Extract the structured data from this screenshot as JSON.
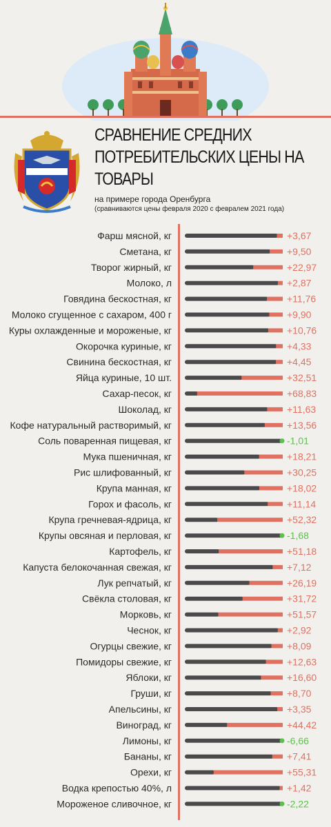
{
  "header": {
    "title_lines": [
      "СРАВНЕНИЕ СРЕДНИХ",
      "ПОТРЕБИТЕЛЬСКИХ ЦЕНЫ НА",
      "ТОВАРЫ"
    ],
    "subtitle": "на примере города Оренбурга",
    "note": "(сравниваются цены февраля 2020 с февралем 2021 года)"
  },
  "colors": {
    "background": "#f2f0ed",
    "bar_base": "#4a4a4a",
    "increase": "#e07060",
    "decrease": "#5cc04c",
    "axis_line": "#e07060",
    "header_sky": "#dcebf7"
  },
  "chart_data": {
    "type": "bar",
    "orientation": "horizontal",
    "unit": "percent change",
    "categories": [
      "Фарш мясной, кг",
      "Сметана, кг",
      "Творог жирный, кг",
      "Молоко, л",
      "Говядина бескостная, кг",
      "Молоко сгущенное с сахаром, 400 г",
      "Куры охлажденные и мороженые, кг",
      "Окорочка куриные, кг",
      "Свинина бескостная, кг",
      "Яйца куриные, 10 шт.",
      "Сахар-песок, кг",
      "Шоколад, кг",
      "Кофе натуральный растворимый, кг",
      "Соль поваренная пищевая, кг",
      "Мука пшеничная, кг",
      "Рис шлифованный, кг",
      "Крупа манная, кг",
      "Горох и фасоль, кг",
      "Крупа гречневая-ядрица, кг",
      "Крупы овсяная и перловая, кг",
      "Картофель, кг",
      "Капуста белокочанная свежая, кг",
      "Лук репчатый, кг",
      "Свёкла столовая, кг",
      "Морковь, кг",
      "Чеснок, кг",
      "Огурцы свежие, кг",
      "Помидоры свежие, кг",
      "Яблоки, кг",
      "Груши, кг",
      "Апельсины, кг",
      "Виноград, кг",
      "Лимоны, кг",
      "Бананы, кг",
      "Орехи, кг",
      "Водка крепостью 40%, л",
      "Мороженое сливочное, кг"
    ],
    "values": [
      3.67,
      9.5,
      22.97,
      2.87,
      11.76,
      9.9,
      10.76,
      4.33,
      4.45,
      32.51,
      68.83,
      11.63,
      13.56,
      -1.01,
      18.21,
      30.25,
      18.02,
      11.14,
      52.32,
      -1.68,
      51.18,
      7.12,
      26.19,
      31.72,
      51.57,
      2.92,
      8.09,
      12.63,
      16.6,
      8.7,
      3.35,
      44.42,
      -6.66,
      7.41,
      55.31,
      1.42,
      -2.22
    ],
    "value_labels": [
      "+3,67",
      "+9,50",
      "+22,97",
      "+2,87",
      "+11,76",
      "+9,90",
      "+10,76",
      "+4,33",
      "+4,45",
      "+32,51",
      "+68,83",
      "+11,63",
      "+13,56",
      "-1,01",
      "+18,21",
      "+30,25",
      "+18,02",
      "+11,14",
      "+52,32",
      "-1,68",
      "+51,18",
      "+7,12",
      "+26,19",
      "+31,72",
      "+51,57",
      "+2,92",
      "+8,09",
      "+12,63",
      "+16,60",
      "+8,70",
      "+3,35",
      "+44,42",
      "-6,66",
      "+7,41",
      "+55,31",
      "+1,42",
      "-2,22"
    ],
    "grid": false,
    "legend": "none"
  }
}
